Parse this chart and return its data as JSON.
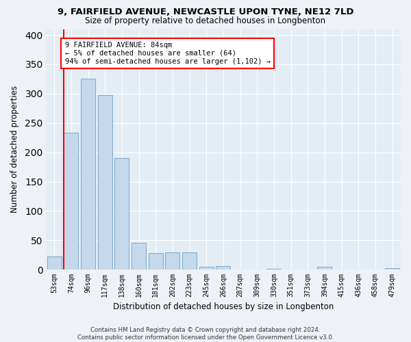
{
  "title": "9, FAIRFIELD AVENUE, NEWCASTLE UPON TYNE, NE12 7LD",
  "subtitle": "Size of property relative to detached houses in Longbenton",
  "xlabel": "Distribution of detached houses by size in Longbenton",
  "ylabel": "Number of detached properties",
  "categories": [
    "53sqm",
    "74sqm",
    "96sqm",
    "117sqm",
    "138sqm",
    "160sqm",
    "181sqm",
    "202sqm",
    "223sqm",
    "245sqm",
    "266sqm",
    "287sqm",
    "309sqm",
    "330sqm",
    "351sqm",
    "373sqm",
    "394sqm",
    "415sqm",
    "436sqm",
    "458sqm",
    "479sqm"
  ],
  "values": [
    22,
    233,
    325,
    298,
    190,
    46,
    28,
    29,
    30,
    5,
    6,
    0,
    0,
    1,
    0,
    0,
    5,
    0,
    0,
    0,
    3
  ],
  "bar_color": "#c5d8ec",
  "bar_edge_color": "#7aaacb",
  "red_line_bin_index": 1,
  "annotation_line1": "9 FAIRFIELD AVENUE: 84sqm",
  "annotation_line2": "← 5% of detached houses are smaller (64)",
  "annotation_line3": "94% of semi-detached houses are larger (1,102) →",
  "footer_text": "Contains HM Land Registry data © Crown copyright and database right 2024.\nContains public sector information licensed under the Open Government Licence v3.0.",
  "ylim": [
    0,
    410
  ],
  "yticks": [
    0,
    50,
    100,
    150,
    200,
    250,
    300,
    350,
    400
  ],
  "bg_color": "#eef2f7",
  "plot_bg_color": "#e4ecf4"
}
